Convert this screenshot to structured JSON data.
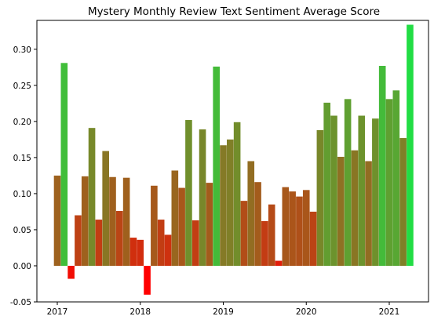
{
  "chart_data": {
    "type": "bar",
    "title": "Mystery Monthly Review Text Sentiment Average Score",
    "xlabel": "",
    "ylabel": "",
    "x_axis_kind": "date",
    "x": [
      "2017-01",
      "2017-02",
      "2017-03",
      "2017-04",
      "2017-05",
      "2017-06",
      "2017-07",
      "2017-08",
      "2017-09",
      "2017-10",
      "2017-11",
      "2017-12",
      "2018-01",
      "2018-02",
      "2018-03",
      "2018-04",
      "2018-05",
      "2018-06",
      "2018-07",
      "2018-08",
      "2018-09",
      "2018-10",
      "2018-11",
      "2018-12",
      "2019-01",
      "2019-02",
      "2019-03",
      "2019-04",
      "2019-05",
      "2019-06",
      "2019-07",
      "2019-08",
      "2019-09",
      "2019-10",
      "2019-11",
      "2019-12",
      "2020-01",
      "2020-02",
      "2020-03",
      "2020-04",
      "2020-05",
      "2020-06",
      "2020-07",
      "2020-08",
      "2020-09",
      "2020-10",
      "2020-11",
      "2020-12",
      "2021-01",
      "2021-02",
      "2021-03",
      "2021-04"
    ],
    "values": [
      0.125,
      0.281,
      -0.018,
      0.07,
      0.124,
      0.191,
      0.064,
      0.159,
      0.123,
      0.076,
      0.122,
      0.039,
      0.036,
      -0.04,
      0.111,
      0.064,
      0.043,
      0.132,
      0.108,
      0.202,
      0.063,
      0.189,
      0.115,
      0.276,
      0.167,
      0.175,
      0.199,
      0.09,
      0.145,
      0.116,
      0.062,
      0.085,
      0.007,
      0.109,
      0.103,
      0.096,
      0.105,
      0.075,
      0.188,
      0.226,
      0.208,
      0.151,
      0.231,
      0.16,
      0.208,
      0.145,
      0.204,
      0.277,
      0.231,
      0.243,
      0.177,
      0.334
    ],
    "bar_color_scale": [
      "#ff0000",
      "#22dd44"
    ],
    "ylim": [
      -0.05,
      0.34
    ],
    "y_ticks": [
      "-0.05",
      "0.00",
      "0.05",
      "0.10",
      "0.15",
      "0.20",
      "0.25",
      "0.30"
    ],
    "x_ticks": [
      "2017",
      "2018",
      "2019",
      "2020",
      "2021"
    ],
    "grid": false,
    "legend": "none"
  }
}
